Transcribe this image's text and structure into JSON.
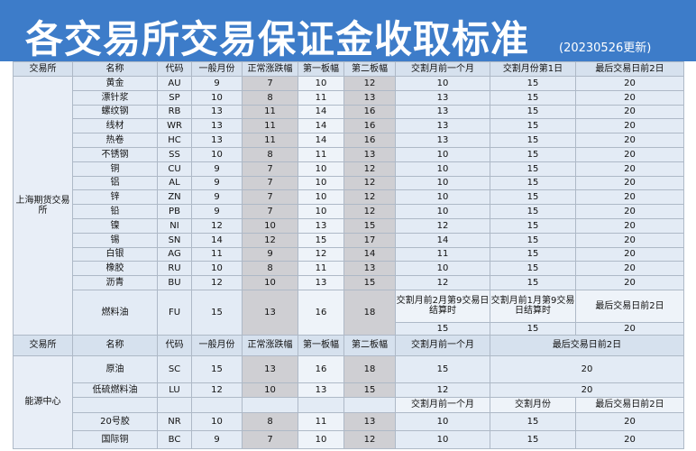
{
  "header": {
    "title": "各交易所交易保证金收取标准",
    "date": "(20230526更新)"
  },
  "sections": [
    {
      "exchange": "上海期货交易所",
      "columns": [
        "交易所",
        "名称",
        "代码",
        "一般月份",
        "正常涨跌幅",
        "第一板幅",
        "第二板幅",
        "交割月前一个月",
        "交割月份第1日",
        "最后交易日前2日"
      ],
      "rows": [
        [
          "黄金",
          "AU",
          9,
          7,
          10,
          12,
          10,
          15,
          20
        ],
        [
          "漂针浆",
          "SP",
          10,
          8,
          11,
          13,
          13,
          15,
          20
        ],
        [
          "螺纹钢",
          "RB",
          13,
          11,
          14,
          16,
          13,
          15,
          20
        ],
        [
          "线材",
          "WR",
          13,
          11,
          14,
          16,
          13,
          15,
          20
        ],
        [
          "热卷",
          "HC",
          13,
          11,
          14,
          16,
          13,
          15,
          20
        ],
        [
          "不锈钢",
          "SS",
          10,
          8,
          11,
          13,
          10,
          15,
          20
        ],
        [
          "铜",
          "CU",
          9,
          7,
          10,
          12,
          10,
          15,
          20
        ],
        [
          "铝",
          "AL",
          9,
          7,
          10,
          12,
          10,
          15,
          20
        ],
        [
          "锌",
          "ZN",
          9,
          7,
          10,
          12,
          10,
          15,
          20
        ],
        [
          "铅",
          "PB",
          9,
          7,
          10,
          12,
          10,
          15,
          20
        ],
        [
          "镍",
          "NI",
          12,
          10,
          13,
          15,
          12,
          15,
          20
        ],
        [
          "锡",
          "SN",
          14,
          12,
          15,
          17,
          14,
          15,
          20
        ],
        [
          "白银",
          "AG",
          11,
          9,
          12,
          14,
          11,
          15,
          20
        ],
        [
          "橡胶",
          "RU",
          10,
          8,
          11,
          13,
          10,
          15,
          20
        ],
        [
          "沥青",
          "BU",
          12,
          10,
          13,
          15,
          12,
          15,
          20
        ]
      ],
      "extra": {
        "name": "燃料油",
        "code": "FU",
        "values": [
          15,
          13,
          16,
          18
        ],
        "subcolumns": [
          "交割月前2月第9交易日结算时",
          "交割月前1月第9交易日结算时",
          "最后交易日前2日"
        ],
        "subvalues": [
          15,
          15,
          20
        ]
      }
    },
    {
      "exchange": "能源中心",
      "columns": [
        "交易所",
        "名称",
        "代码",
        "一般月份",
        "正常涨跌幅",
        "第一板幅",
        "第二板幅",
        "交割月前一个月",
        "最后交易日前2日"
      ],
      "rows": [
        [
          "原油",
          "SC",
          15,
          13,
          16,
          18,
          15,
          20
        ],
        [
          "低硫燃料油",
          "LU",
          12,
          10,
          13,
          15,
          12,
          20
        ]
      ],
      "subcolumns": [
        "交割月前一个月",
        "交割月份",
        "最后交易日前2日"
      ],
      "rows2": [
        [
          "20号胶",
          "NR",
          10,
          8,
          11,
          13,
          10,
          15,
          20
        ],
        [
          "国际铜",
          "BC",
          9,
          7,
          10,
          12,
          10,
          15,
          20
        ]
      ]
    }
  ]
}
